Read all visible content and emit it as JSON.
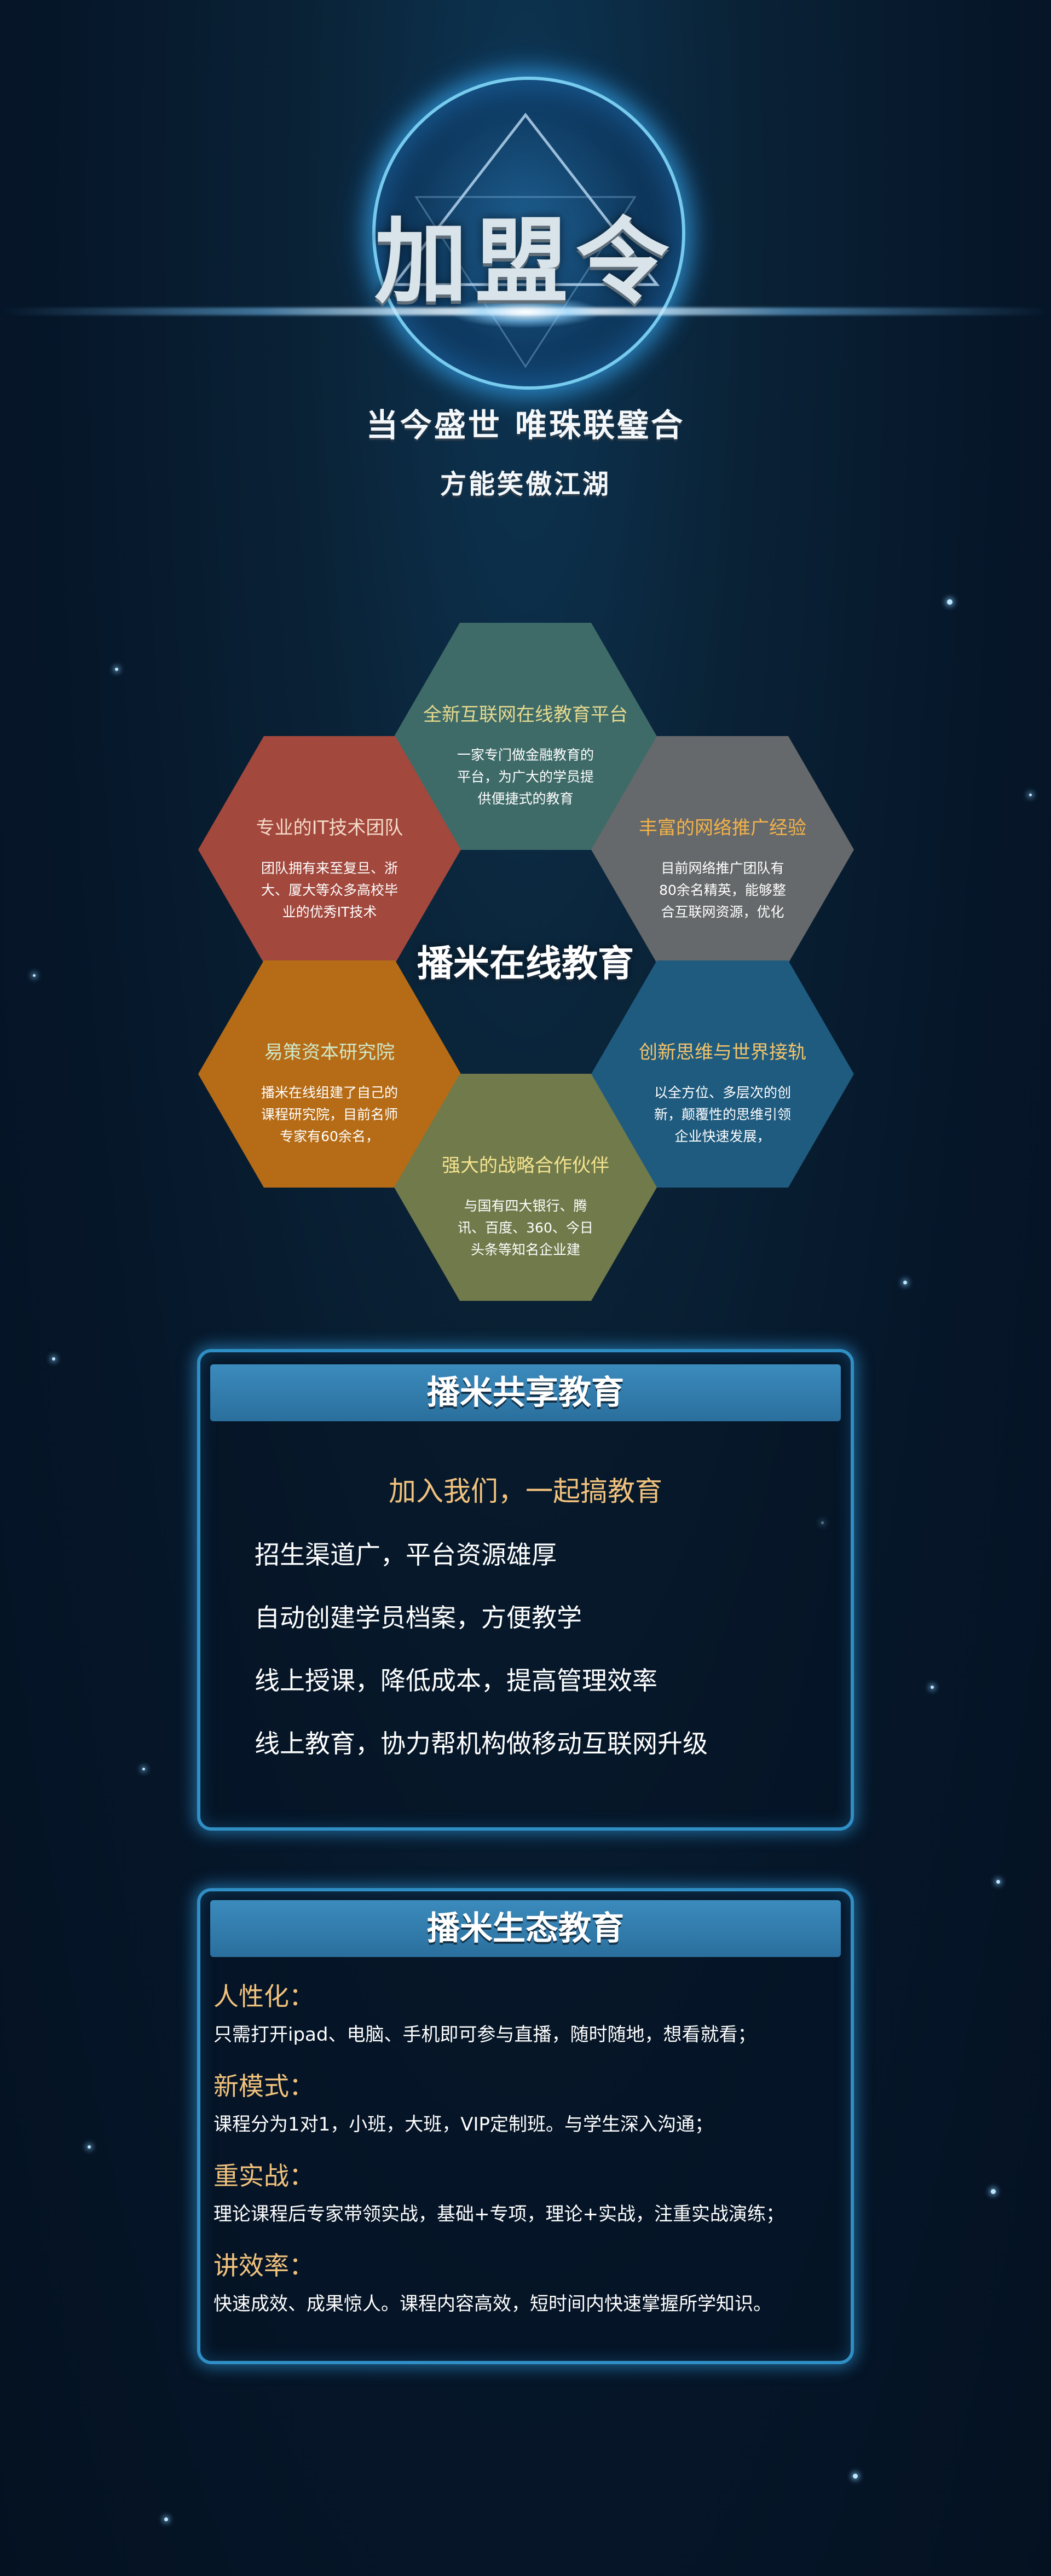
{
  "hero": {
    "title": "加盟令",
    "subtitle_line1": "当今盛世 唯珠联璧合",
    "subtitle_line2": "方能笑傲江湖"
  },
  "hex_cluster": {
    "center_title": "播米在线教育",
    "cells": [
      {
        "title": "全新互联网在线教育平台",
        "desc": "一家专门做金融教育的平台，为广大的学员提供便捷式的教育",
        "color": "#3e6b68",
        "title_color": "#e6d98f"
      },
      {
        "title": "专业的IT技术团队",
        "desc": "团队拥有来至复旦、浙大、厦大等众多高校毕业的优秀IT技术",
        "color": "#a2483d",
        "title_color": "#f4d9c8"
      },
      {
        "title": "丰富的网络推广经验",
        "desc": "目前网络推广团队有80余名精英，能够整合互联网资源，优化",
        "color": "#66696b",
        "title_color": "#f2b24a"
      },
      {
        "title": "易策资本研究院",
        "desc": "播米在线组建了自己的课程研究院，目前名师专家有60余名，",
        "color": "#b66c16",
        "title_color": "#cfe7c8"
      },
      {
        "title": "创新思维与世界接轨",
        "desc": "以全方位、多层次的创新，颠覆性的思维引领企业快速发展，",
        "color": "#1f5b7f",
        "title_color": "#f2c36b"
      },
      {
        "title": "强大的战略合作伙伴",
        "desc": "与国有四大银行、腾讯、百度、360、今日头条等知名企业建",
        "color": "#717a4b",
        "title_color": "#f4e38f"
      }
    ]
  },
  "panel1": {
    "title": "播米共享教育",
    "subtitle": "加入我们，一起搞教育",
    "items": [
      "招生渠道广，平台资源雄厚",
      "自动创建学员档案，方便教学",
      "线上授课，降低成本，提高管理效率",
      "线上教育，协力帮机构做移动互联网升级"
    ]
  },
  "panel2": {
    "title": "播米生态教育",
    "sections": [
      {
        "heading": "人性化：",
        "body": "只需打开ipad、电脑、手机即可参与直播，随时随地，想看就看；"
      },
      {
        "heading": "新模式：",
        "body": "课程分为1对1，小班，大班，VIP定制班。与学生深入沟通；"
      },
      {
        "heading": "重实战：",
        "body": "理论课程后专家带领实战，基础+专项，理论+实战，注重实战演练；"
      },
      {
        "heading": "讲效率：",
        "body": "快速成效、成果惊人。课程内容高效，短时间内快速掌握所学知识。"
      }
    ]
  }
}
